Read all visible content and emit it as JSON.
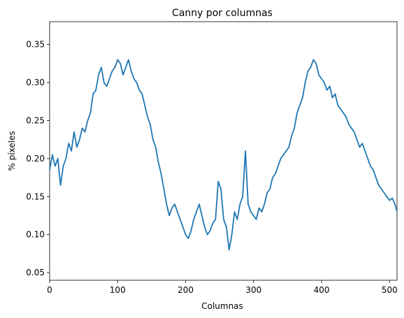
{
  "chart_data": {
    "type": "line",
    "title": "Canny por columnas",
    "xlabel": "Columnas",
    "ylabel": "% píxeles",
    "xlim": [
      0,
      511
    ],
    "ylim": [
      0.04,
      0.38
    ],
    "x_ticks": [
      0,
      100,
      200,
      300,
      400,
      500
    ],
    "y_ticks": [
      0.05,
      0.1,
      0.15,
      0.2,
      0.25,
      0.3,
      0.35
    ],
    "y_tick_labels": [
      "0.05",
      "0.10",
      "0.15",
      "0.20",
      "0.25",
      "0.30",
      "0.35"
    ],
    "grid": false,
    "line_color": "#1f77b4",
    "series": [
      {
        "x": [
          0,
          4,
          8,
          12,
          16,
          20,
          24,
          28,
          32,
          36,
          40,
          44,
          48,
          52,
          56,
          60,
          64,
          68,
          72,
          76,
          80,
          84,
          88,
          92,
          96,
          100,
          104,
          108,
          112,
          116,
          120,
          124,
          128,
          132,
          136,
          140,
          144,
          148,
          152,
          156,
          160,
          164,
          168,
          172,
          176,
          180,
          184,
          188,
          192,
          196,
          200,
          204,
          208,
          212,
          216,
          220,
          224,
          228,
          232,
          236,
          240,
          244,
          248,
          252,
          256,
          260,
          264,
          268,
          272,
          276,
          280,
          284,
          288,
          292,
          296,
          300,
          304,
          308,
          312,
          316,
          320,
          324,
          328,
          332,
          336,
          340,
          344,
          348,
          352,
          356,
          360,
          364,
          368,
          372,
          376,
          380,
          384,
          388,
          392,
          396,
          400,
          404,
          408,
          412,
          416,
          420,
          424,
          428,
          432,
          436,
          440,
          444,
          448,
          452,
          456,
          460,
          464,
          468,
          472,
          476,
          480,
          484,
          488,
          492,
          496,
          500,
          504,
          508,
          511
        ],
        "y": [
          0.185,
          0.205,
          0.19,
          0.2,
          0.165,
          0.19,
          0.2,
          0.22,
          0.21,
          0.235,
          0.215,
          0.225,
          0.24,
          0.235,
          0.25,
          0.26,
          0.285,
          0.29,
          0.31,
          0.32,
          0.3,
          0.295,
          0.305,
          0.315,
          0.32,
          0.33,
          0.325,
          0.31,
          0.32,
          0.33,
          0.315,
          0.305,
          0.3,
          0.29,
          0.285,
          0.27,
          0.255,
          0.245,
          0.225,
          0.215,
          0.195,
          0.18,
          0.16,
          0.14,
          0.125,
          0.135,
          0.14,
          0.13,
          0.12,
          0.11,
          0.1,
          0.095,
          0.105,
          0.12,
          0.13,
          0.14,
          0.125,
          0.11,
          0.1,
          0.105,
          0.115,
          0.12,
          0.17,
          0.16,
          0.12,
          0.11,
          0.08,
          0.1,
          0.13,
          0.12,
          0.14,
          0.15,
          0.21,
          0.14,
          0.13,
          0.125,
          0.12,
          0.135,
          0.13,
          0.14,
          0.155,
          0.16,
          0.175,
          0.18,
          0.19,
          0.2,
          0.205,
          0.21,
          0.215,
          0.23,
          0.24,
          0.26,
          0.27,
          0.28,
          0.3,
          0.315,
          0.32,
          0.33,
          0.325,
          0.31,
          0.305,
          0.3,
          0.29,
          0.295,
          0.28,
          0.285,
          0.27,
          0.265,
          0.26,
          0.255,
          0.245,
          0.24,
          0.235,
          0.225,
          0.215,
          0.22,
          0.21,
          0.2,
          0.19,
          0.185,
          0.175,
          0.165,
          0.16,
          0.155,
          0.15,
          0.145,
          0.148,
          0.14,
          0.13
        ]
      }
    ]
  }
}
